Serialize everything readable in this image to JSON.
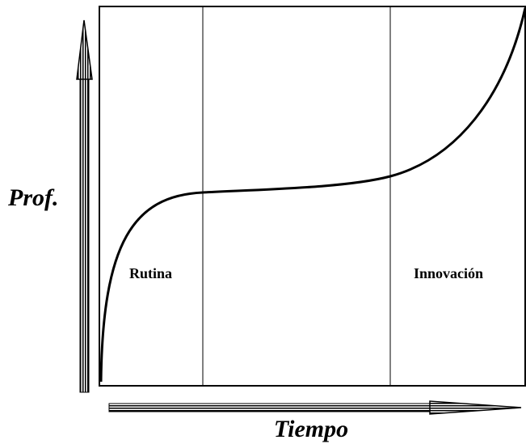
{
  "axes": {
    "y_label": "Prof.",
    "x_label": "Tiempo"
  },
  "regions": {
    "left": "Rutina",
    "right": "Innovación"
  }
}
